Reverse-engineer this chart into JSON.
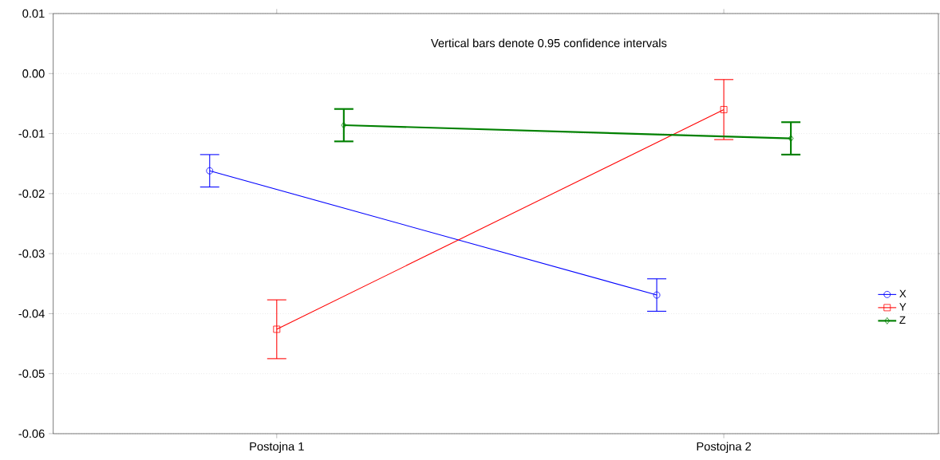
{
  "chart_data": {
    "type": "line",
    "categories": [
      "Postojna 1",
      "Postojna 2"
    ],
    "series": [
      {
        "name": "X",
        "color": "#0000ff",
        "marker": "circle",
        "values": [
          -0.0162,
          -0.0369
        ],
        "errors": [
          0.0027,
          0.0027
        ]
      },
      {
        "name": "Y",
        "color": "#ff0000",
        "marker": "square",
        "values": [
          -0.0426,
          -0.006
        ],
        "errors": [
          0.0049,
          0.005
        ]
      },
      {
        "name": "Z",
        "color": "#008000",
        "marker": "diamond",
        "values": [
          -0.0086,
          -0.0108
        ],
        "errors": [
          0.0027,
          0.0027
        ]
      }
    ],
    "ylim": [
      -0.06,
      0.01
    ],
    "yticks": [
      -0.06,
      -0.05,
      -0.04,
      -0.03,
      -0.02,
      -0.01,
      {
        "value": 0,
        "label": "0.00"
      },
      0.01
    ],
    "grid": "y",
    "legend": "right",
    "line_style": "solid",
    "annotations": [
      "Vertical bars denote 0.95 confidence intervals"
    ]
  }
}
